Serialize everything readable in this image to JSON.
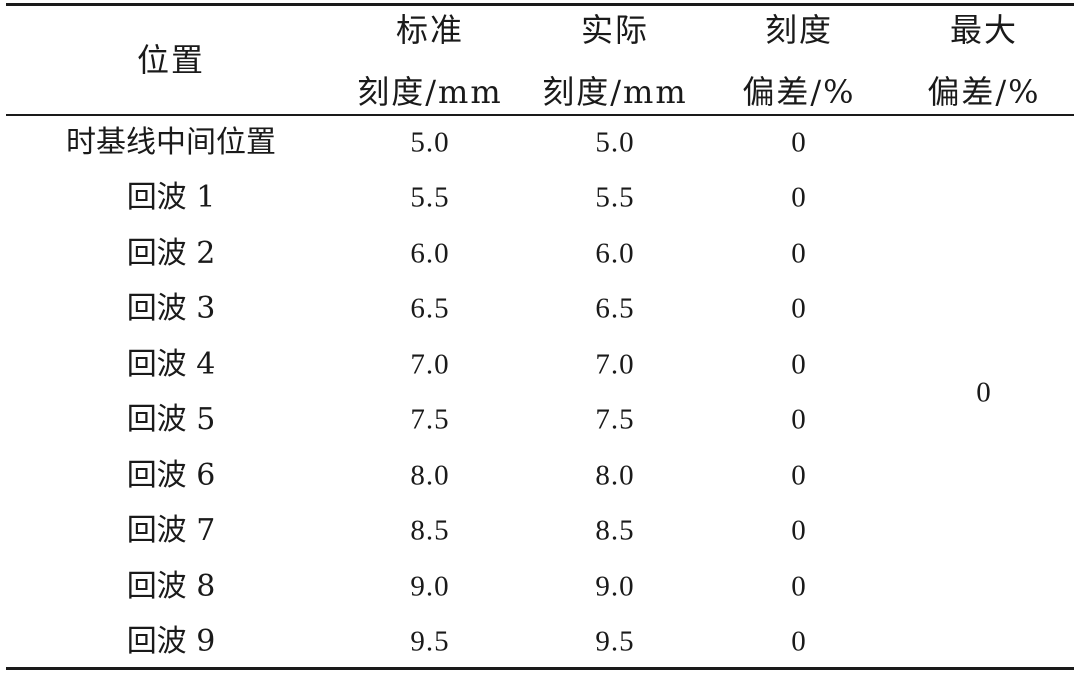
{
  "table": {
    "headers": {
      "position": "位置",
      "standard_line1": "标准",
      "standard_line2": "刻度/mm",
      "actual_line1": "实际",
      "actual_line2": "刻度/mm",
      "deviation_line1": "刻度",
      "deviation_line2": "偏差/%",
      "max_line1": "最大",
      "max_line2": "偏差/%"
    },
    "rows": [
      {
        "position": "时基线中间位置",
        "standard": "5.0",
        "actual": "5.0",
        "deviation": "0"
      },
      {
        "position": "回波 1",
        "standard": "5.5",
        "actual": "5.5",
        "deviation": "0"
      },
      {
        "position": "回波 2",
        "standard": "6.0",
        "actual": "6.0",
        "deviation": "0"
      },
      {
        "position": "回波 3",
        "standard": "6.5",
        "actual": "6.5",
        "deviation": "0"
      },
      {
        "position": "回波 4",
        "standard": "7.0",
        "actual": "7.0",
        "deviation": "0"
      },
      {
        "position": "回波 5",
        "standard": "7.5",
        "actual": "7.5",
        "deviation": "0"
      },
      {
        "position": "回波 6",
        "standard": "8.0",
        "actual": "8.0",
        "deviation": "0"
      },
      {
        "position": "回波 7",
        "standard": "8.5",
        "actual": "8.5",
        "deviation": "0"
      },
      {
        "position": "回波 8",
        "standard": "9.0",
        "actual": "9.0",
        "deviation": "0"
      },
      {
        "position": "回波 9",
        "standard": "9.5",
        "actual": "9.5",
        "deviation": "0"
      }
    ],
    "max_deviation": "0"
  }
}
